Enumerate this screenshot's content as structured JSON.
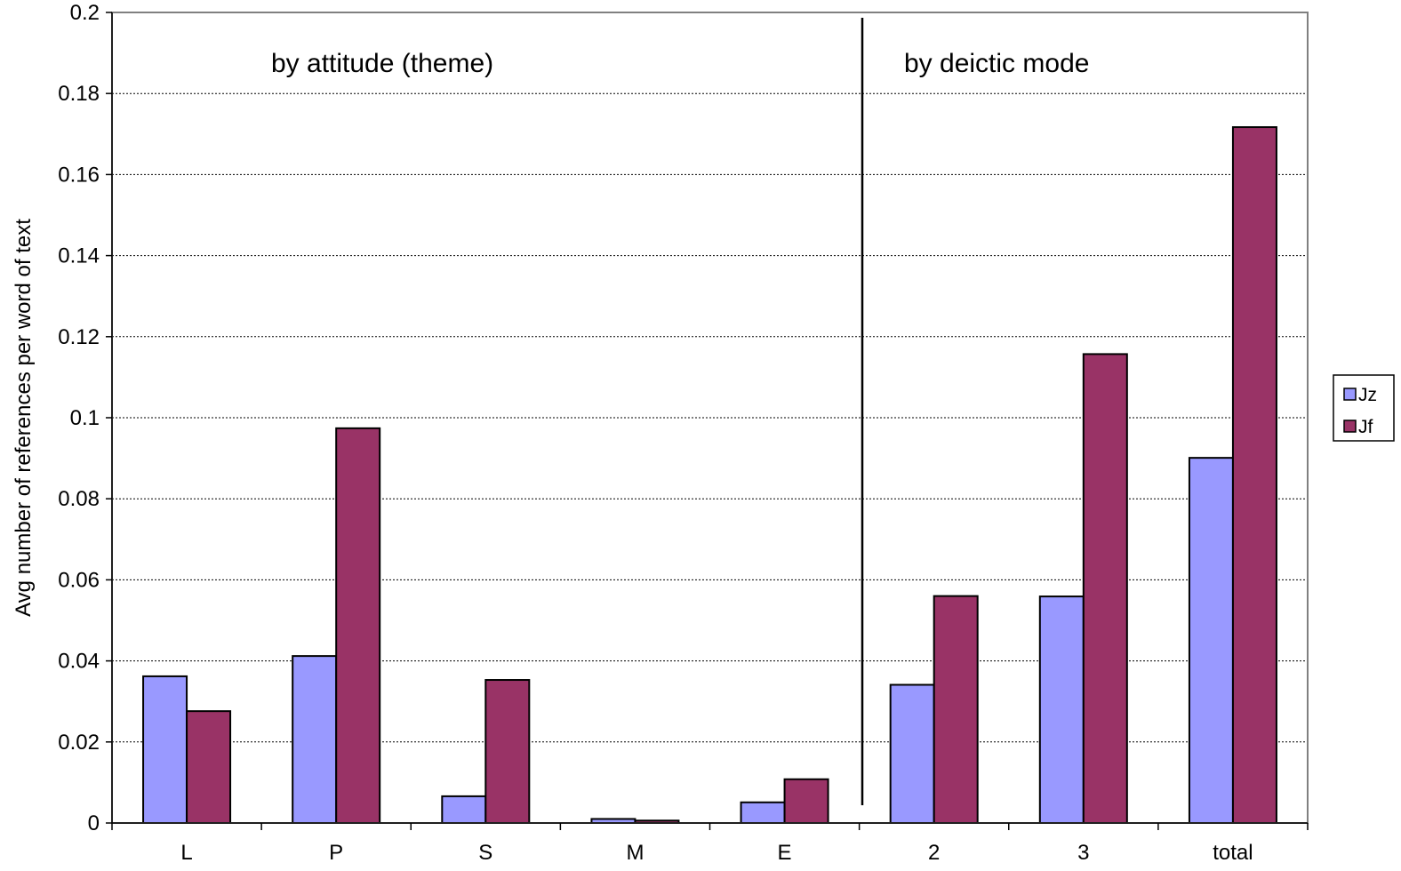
{
  "chart_data": {
    "type": "bar",
    "ylabel": "Avg number of references per word of text",
    "xlabel": "",
    "title": "",
    "categories": [
      "L",
      "P",
      "S",
      "M",
      "E",
      "2",
      "3",
      "total"
    ],
    "series": [
      {
        "name": "Jz",
        "color": "#9999ff",
        "values": [
          0.0362,
          0.0412,
          0.0066,
          0.001,
          0.0051,
          0.0341,
          0.0559,
          0.0901
        ]
      },
      {
        "name": "Jf",
        "color": "#993366",
        "values": [
          0.0276,
          0.0974,
          0.0353,
          0.0006,
          0.0108,
          0.056,
          0.1157,
          0.1717
        ]
      }
    ],
    "ylim": [
      0,
      0.2
    ],
    "yticks": [
      "0",
      "0.02",
      "0.04",
      "0.06",
      "0.08",
      "0.1",
      "0.12",
      "0.14",
      "0.16",
      "0.18",
      "0.2"
    ],
    "grid": "horizontal dotted",
    "legend": "right",
    "annotations": [
      {
        "text": "by attitude (theme)"
      },
      {
        "text": "by deictic mode"
      }
    ],
    "divider_after_category": "E"
  }
}
